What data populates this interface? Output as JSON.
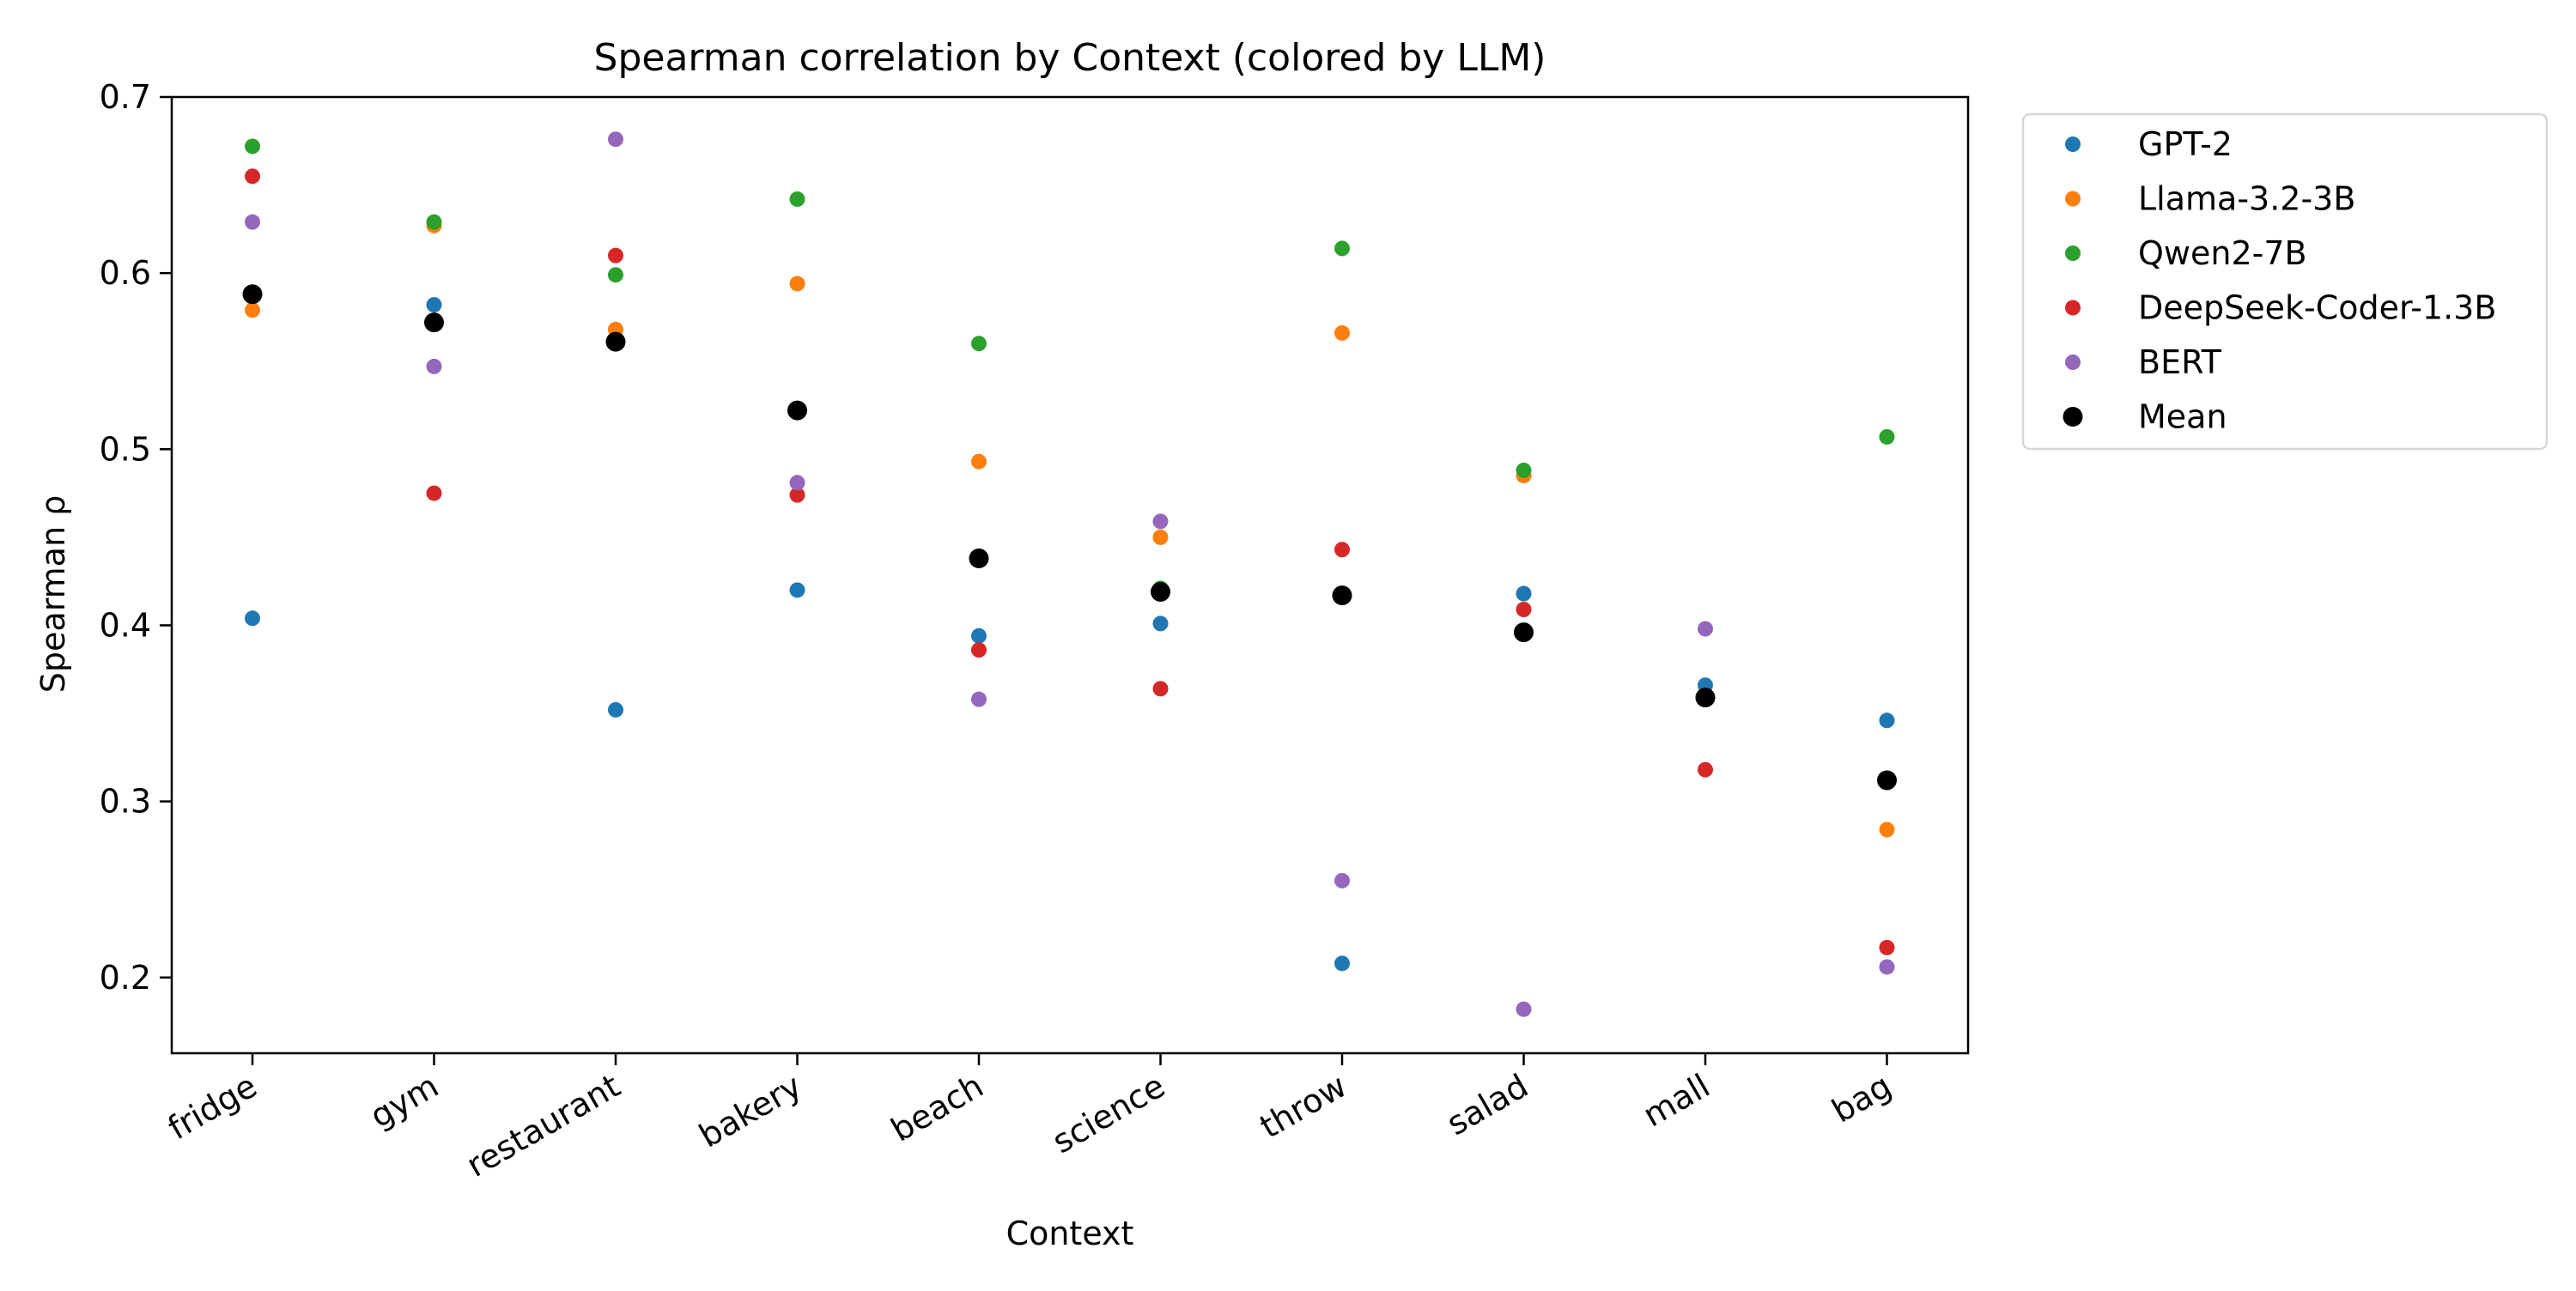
{
  "chart_data": {
    "type": "scatter",
    "title": "Spearman correlation by Context (colored by LLM)",
    "xlabel": "Context",
    "ylabel": "Spearman ρ",
    "categories": [
      "fridge",
      "gym",
      "restaurant",
      "bakery",
      "beach",
      "science",
      "throw",
      "salad",
      "mall",
      "bag"
    ],
    "ylim": [
      0.157,
      0.7
    ],
    "yticks": [
      0.2,
      0.3,
      0.4,
      0.5,
      0.6,
      0.7
    ],
    "ytick_labels": [
      "0.2",
      "0.3",
      "0.4",
      "0.5",
      "0.6",
      "0.7"
    ],
    "grid": false,
    "legend_position": "outside-top-right",
    "series": [
      {
        "name": "GPT-2",
        "color": "#1f77b4",
        "marker": "small-dot",
        "values": [
          0.404,
          0.582,
          0.352,
          0.42,
          0.394,
          0.401,
          0.208,
          0.418,
          0.366,
          0.346
        ]
      },
      {
        "name": "Llama-3.2-3B",
        "color": "#ff7f0e",
        "marker": "small-dot",
        "values": [
          0.579,
          0.627,
          0.568,
          0.594,
          0.493,
          0.45,
          0.566,
          0.485,
          0.36,
          0.284
        ]
      },
      {
        "name": "Qwen2-7B",
        "color": "#2ca02c",
        "marker": "small-dot",
        "values": [
          0.672,
          0.629,
          0.599,
          0.642,
          0.56,
          0.421,
          0.614,
          0.488,
          0.359,
          0.507
        ]
      },
      {
        "name": "DeepSeek-Coder-1.3B",
        "color": "#d62728",
        "marker": "small-dot",
        "values": [
          0.655,
          0.475,
          0.61,
          0.474,
          0.386,
          0.364,
          0.443,
          0.409,
          0.318,
          0.217
        ]
      },
      {
        "name": "BERT",
        "color": "#9467bd",
        "marker": "small-dot",
        "values": [
          0.629,
          0.547,
          0.676,
          0.481,
          0.358,
          0.459,
          0.255,
          0.182,
          0.398,
          0.206
        ]
      },
      {
        "name": "Mean",
        "color": "#000000",
        "marker": "large-dot",
        "values": [
          0.588,
          0.572,
          0.561,
          0.522,
          0.438,
          0.419,
          0.417,
          0.396,
          0.359,
          0.312
        ]
      }
    ]
  }
}
